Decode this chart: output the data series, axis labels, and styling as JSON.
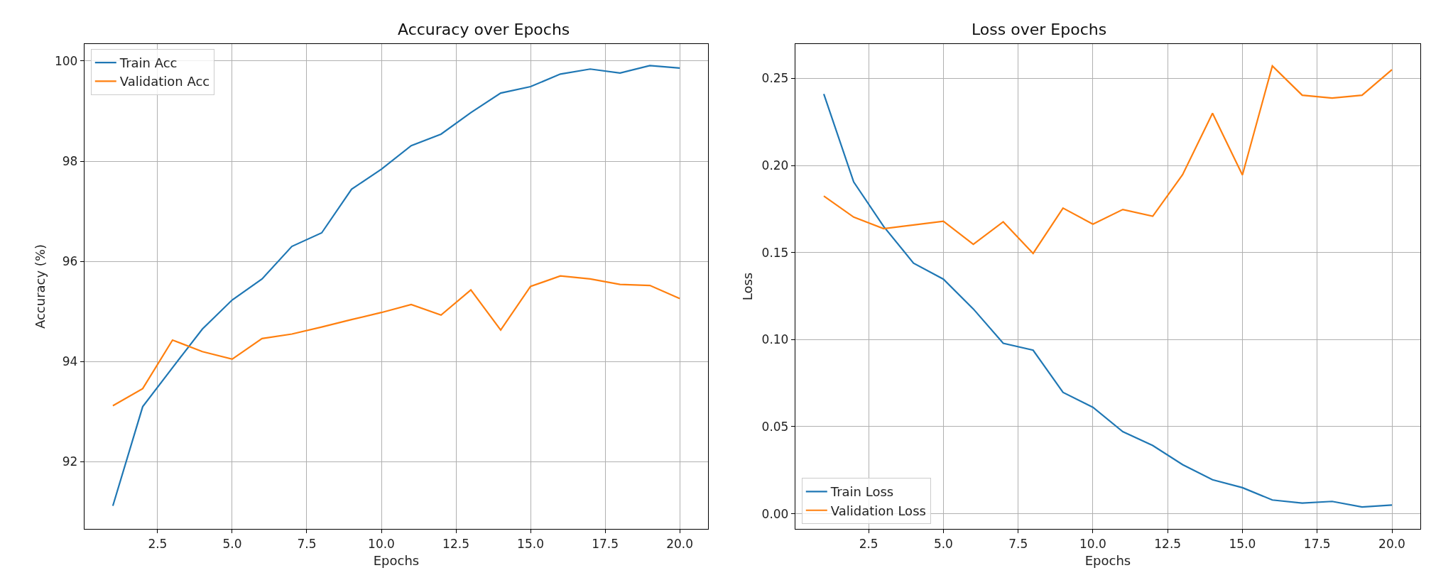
{
  "chart_data": [
    {
      "type": "line",
      "title": "Accuracy over Epochs",
      "xlabel": "Epochs",
      "ylabel": "Accuracy (%)",
      "x": [
        1,
        2,
        3,
        4,
        5,
        6,
        7,
        8,
        9,
        10,
        11,
        12,
        13,
        14,
        15,
        16,
        17,
        18,
        19,
        20
      ],
      "series": [
        {
          "name": "Train Acc",
          "color": "#1f77b4",
          "values": [
            91.12,
            93.1,
            93.88,
            94.65,
            95.23,
            95.65,
            96.3,
            96.57,
            97.44,
            97.84,
            98.31,
            98.54,
            98.97,
            99.36,
            99.49,
            99.74,
            99.84,
            99.76,
            99.91,
            99.86
          ]
        },
        {
          "name": "Validation Acc",
          "color": "#ff7f0e",
          "values": [
            93.12,
            93.46,
            94.43,
            94.2,
            94.05,
            94.46,
            94.55,
            94.69,
            94.84,
            94.98,
            95.14,
            94.93,
            95.43,
            94.63,
            95.5,
            95.71,
            95.65,
            95.54,
            95.52,
            95.26
          ]
        }
      ],
      "xlim": [
        0.05,
        20.95
      ],
      "xticks": [
        2.5,
        {
          "value": 5,
          "label": "5.0"
        },
        7.5,
        {
          "value": 10,
          "label": "10.0"
        },
        12.5,
        {
          "value": 15,
          "label": "15.0"
        },
        17.5,
        {
          "value": 20,
          "label": "20.0"
        }
      ],
      "ylim": [
        90.66,
        100.34
      ],
      "yticks": [
        92,
        94,
        96,
        98,
        100
      ],
      "grid": true,
      "legend": "top left",
      "line_style": "solid",
      "marker": "none"
    },
    {
      "type": "line",
      "title": "Loss over Epochs",
      "xlabel": "Epochs",
      "ylabel": "Loss",
      "x": [
        1,
        2,
        3,
        4,
        5,
        6,
        7,
        8,
        9,
        10,
        11,
        12,
        13,
        14,
        15,
        16,
        17,
        18,
        19,
        20
      ],
      "series": [
        {
          "name": "Train Loss",
          "color": "#1f77b4",
          "values": [
            0.241,
            0.1905,
            0.165,
            0.1439,
            0.1347,
            0.1176,
            0.0979,
            0.0939,
            0.0697,
            0.0611,
            0.0471,
            0.0392,
            0.0282,
            0.0195,
            0.015,
            0.0079,
            0.0061,
            0.0071,
            0.0039,
            0.005
          ]
        },
        {
          "name": "Validation Loss",
          "color": "#ff7f0e",
          "values": [
            0.1824,
            0.1703,
            0.1637,
            0.1658,
            0.1679,
            0.1547,
            0.1676,
            0.1495,
            0.1755,
            0.1663,
            0.1747,
            0.1708,
            0.1947,
            0.23,
            0.1945,
            0.2571,
            0.2403,
            0.2387,
            0.2403,
            0.255
          ]
        }
      ],
      "xlim": [
        0.05,
        20.95
      ],
      "xticks": [
        2.5,
        {
          "value": 5,
          "label": "5.0"
        },
        7.5,
        {
          "value": 10,
          "label": "10.0"
        },
        12.5,
        {
          "value": 15,
          "label": "15.0"
        },
        17.5,
        {
          "value": 20,
          "label": "20.0"
        }
      ],
      "ylim": [
        -0.0087,
        0.2697
      ],
      "yticks": [
        {
          "value": 0,
          "label": "0.00"
        },
        {
          "value": 0.05,
          "label": "0.05"
        },
        {
          "value": 0.1,
          "label": "0.10"
        },
        {
          "value": 0.15,
          "label": "0.15"
        },
        {
          "value": 0.2,
          "label": "0.20"
        },
        {
          "value": 0.25,
          "label": "0.25"
        }
      ],
      "grid": true,
      "legend": "bottom left",
      "line_style": "solid",
      "marker": "none"
    }
  ]
}
